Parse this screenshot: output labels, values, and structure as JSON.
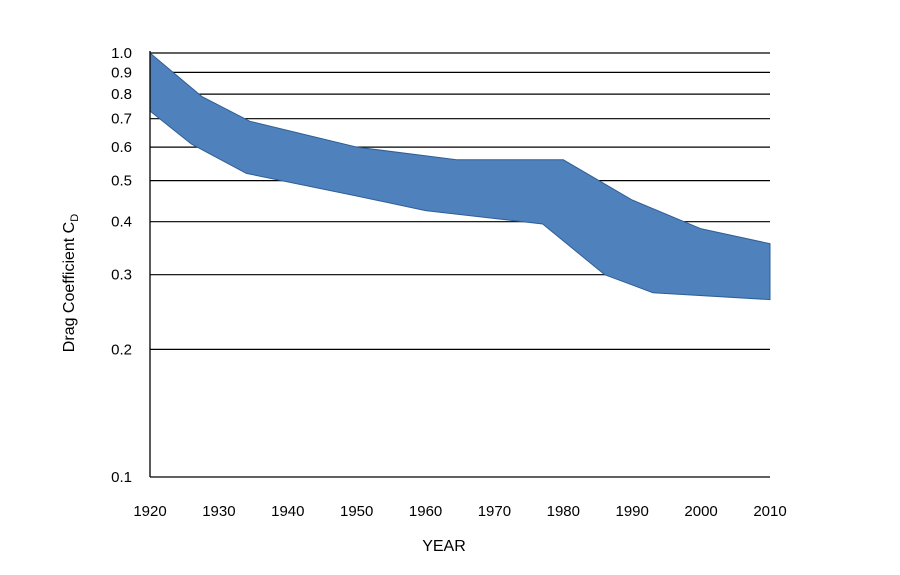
{
  "chart_data": {
    "type": "area",
    "title": "",
    "xlabel": "YEAR",
    "ylabel": "Drag Coefficient C",
    "ylabel_subscript": "D",
    "y_scale": "log",
    "xlim": [
      1920,
      2010
    ],
    "ylim": [
      0.1,
      1.0
    ],
    "x_ticks": [
      "1920",
      "1930",
      "1940",
      "1950",
      "1960",
      "1970",
      "1980",
      "1990",
      "2000",
      "2010"
    ],
    "y_ticks": [
      "0.1",
      "0.2",
      "0.3",
      "0.4",
      "0.5",
      "0.6",
      "0.7",
      "0.8",
      "0.9",
      "1.0"
    ],
    "gridlines_y": [
      0.2,
      0.3,
      0.4,
      0.5,
      0.6,
      0.7,
      0.8,
      0.9,
      1.0
    ],
    "band_color": "#4f81bd",
    "band_edge_color": "#2f5f96",
    "band": {
      "upper": [
        {
          "x": 1920,
          "y": 1.0
        },
        {
          "x": 1927.5,
          "y": 0.79
        },
        {
          "x": 1934.5,
          "y": 0.69
        },
        {
          "x": 1950,
          "y": 0.6
        },
        {
          "x": 1964.5,
          "y": 0.56
        },
        {
          "x": 1980,
          "y": 0.56
        },
        {
          "x": 1990,
          "y": 0.45
        },
        {
          "x": 2000,
          "y": 0.385
        },
        {
          "x": 2010,
          "y": 0.355
        }
      ],
      "lower": [
        {
          "x": 1920,
          "y": 0.73
        },
        {
          "x": 1926,
          "y": 0.61
        },
        {
          "x": 1934,
          "y": 0.52
        },
        {
          "x": 1950,
          "y": 0.46
        },
        {
          "x": 1960,
          "y": 0.425
        },
        {
          "x": 1977,
          "y": 0.395
        },
        {
          "x": 1986,
          "y": 0.3
        },
        {
          "x": 1993,
          "y": 0.272
        },
        {
          "x": 2010,
          "y": 0.262
        }
      ]
    }
  }
}
